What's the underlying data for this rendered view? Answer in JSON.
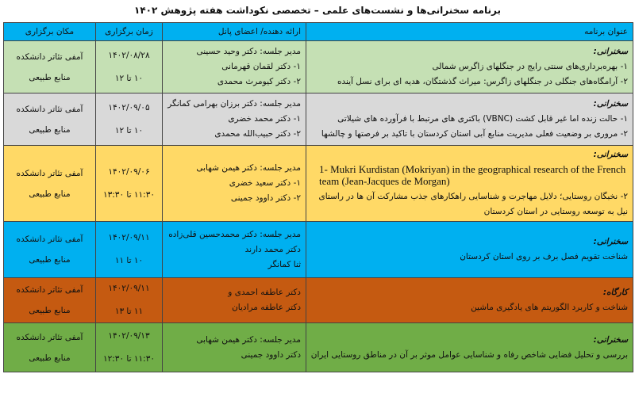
{
  "title": "برنامه سخنرانی‌ها و نشست‌های علمی – تخصصی نکوداشت هفته پژوهش ۱۴۰۲",
  "headers": {
    "title": "عنوان برنامه",
    "presenters": "ارائه دهنده/ اعضای پانل",
    "time": "زمان برگزاری",
    "place": "مکان برگزاری"
  },
  "colors": {
    "header": "#00b0f0",
    "row1": "#c5e0b4",
    "row2": "#d9d9d9",
    "row3": "#ffd966",
    "row4": "#00b0f0",
    "row5": "#c55a11",
    "row6": "#70ad47"
  },
  "rows": [
    {
      "kind": "سخنرانی:",
      "items": [
        "۱- بهره‌برداری‌های سنتی رایج در جنگلهای زاگرس شمالی",
        "۲- آرامگاه‌های جنگلی در جنگلهای زاگرس: میراث گذشتگان، هدیه ای برای نسل آینده"
      ],
      "presenters": [
        "مدیر جلسه: دکتر وحید حسینی",
        "۱- دکتر لقمان قهرمانی",
        "۲- دکتر کیومرث محمدی"
      ],
      "date": "۱۴۰۲/۰۸/۲۸",
      "time": "۱۰ تا ۱۲",
      "place": [
        "آمفی تئاتر دانشکده",
        "منابع طبیعی"
      ]
    },
    {
      "kind": "سخنرانی:",
      "items": [
        "۱- حالت زنده اما غیر قابل کشت (VBNC) باکتری های مرتبط با فرآورده های شیلاتی",
        "۲- مروری بر وضعیت فعلی مدیریت منابع آبی استان کردستان با تاکید بر فرصتها و چالشها"
      ],
      "presenters": [
        "مدیر جلسه: دکتر برزان بهرامی کمانگر",
        "۱- دکتر محمد خضری",
        "۲- دکتر حبیب‌الله محمدی"
      ],
      "date": "۱۴۰۲/۰۹/۰۵",
      "time": "۱۰ تا ۱۲",
      "place": [
        "آمفی تئاتر دانشکده",
        "منابع طبیعی"
      ]
    },
    {
      "kind": "سخنرانی:",
      "items_en": "1- Mukri Kurdistan (Mokriyan) in the geographical research of the French team (Jean-Jacques de Morgan)",
      "items": [
        "۲- نخبگان روستایی؛ دلایل مهاجرت و شناسایی راهکارهای جذب مشارکت آن ها در راستای",
        "نیل به توسعه روستایی در استان کردستان"
      ],
      "presenters": [
        "مدیر جلسه: دکتر هیمن شهابی",
        "۱- دکتر سعید خضری",
        "۲- دکتر داوود جمینی"
      ],
      "date": "۱۴۰۲/۰۹/۰۶",
      "time": "۱۱:۳۰ تا ۱۳:۳۰",
      "place": [
        "آمفی تئاتر دانشکده",
        "منابع طبیعی"
      ]
    },
    {
      "kind": "سخنرانی:",
      "items": [
        "شناخت تقویم فصل برف بر روی استان کردستان"
      ],
      "presenters": [
        "مدیر جلسه: دکتر محمدحسین قلی‌زاده",
        "دکتر محمد دارند",
        "ثنا کمانگر"
      ],
      "date": "۱۴۰۲/۰۹/۱۱",
      "time": "۱۰ تا ۱۱",
      "place": [
        "آمفی تئاتر دانشکده",
        "منابع طبیعی"
      ]
    },
    {
      "kind": "کارگاه:",
      "items": [
        "شناخت و کاربرد الگوریتم های یادگیری ماشین"
      ],
      "presenters": [
        "دکتر عاطفه احمدی و",
        "دکتر عاطفه مرادیان"
      ],
      "date": "۱۴۰۲/۰۹/۱۱",
      "time": "۱۱ تا ۱۳",
      "place": [
        "آمفی تئاتر دانشکده",
        "منابع طبیعی"
      ]
    },
    {
      "kind": "سخنرانی:",
      "items": [
        "بررسی و تحلیل فضایی شاخص رفاه و شناسایی عوامل موثر بر آن در مناطق روستایی ایران"
      ],
      "presenters": [
        "مدیر جلسه: دکتر هیمن شهابی",
        "دکتر داوود جمینی"
      ],
      "date": "۱۴۰۲/۰۹/۱۳",
      "time": "۱۱:۳۰ تا ۱۲:۳۰",
      "place": [
        "آمفی تئاتر دانشکده",
        "منابع طبیعی"
      ]
    }
  ]
}
